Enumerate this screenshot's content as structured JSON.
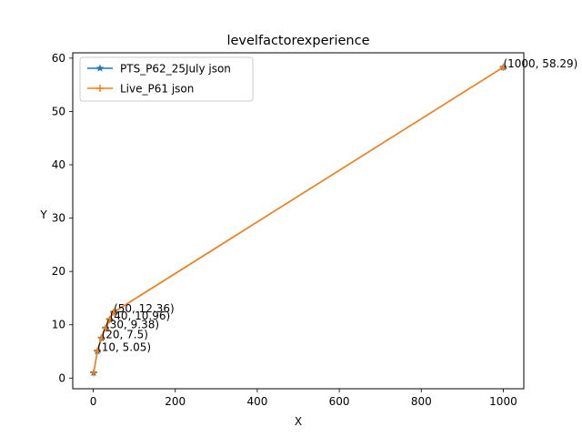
{
  "chart_data": {
    "type": "line",
    "title": "levelfactorexperience",
    "xlabel": "X",
    "ylabel": "Y",
    "xlim": [
      -50,
      1050
    ],
    "ylim": [
      -2.0,
      61.0
    ],
    "xticks": [
      0,
      200,
      400,
      600,
      800,
      1000
    ],
    "yticks": [
      0,
      10,
      20,
      30,
      40,
      50,
      60
    ],
    "xtick_labels": [
      "0",
      "200",
      "400",
      "600",
      "800",
      "1000"
    ],
    "ytick_labels": [
      "0",
      "10",
      "20",
      "30",
      "40",
      "50",
      "60"
    ],
    "grid": false,
    "legend_position": "upper-left",
    "series": [
      {
        "name": "PTS_P62_25July json",
        "color": "#1f77b4",
        "marker": "star",
        "x": [
          1,
          10,
          20,
          30,
          40,
          50,
          1000
        ],
        "y": [
          1,
          5.05,
          7.5,
          9.38,
          10.96,
          12.36,
          58.29
        ]
      },
      {
        "name": "Live_P61 json",
        "color": "#ff7f0e",
        "marker": "plus",
        "x": [
          1,
          10,
          20,
          30,
          40,
          50,
          1000
        ],
        "y": [
          1,
          5.05,
          7.5,
          9.38,
          10.96,
          12.36,
          58.29
        ]
      }
    ],
    "annotations": [
      {
        "text": "(10, 5.05)",
        "x": 10,
        "y": 5.05
      },
      {
        "text": "(20, 7.5)",
        "x": 20,
        "y": 7.5
      },
      {
        "text": "(30, 9.38)",
        "x": 30,
        "y": 9.38
      },
      {
        "text": "(40, 10.96)",
        "x": 40,
        "y": 10.96
      },
      {
        "text": "(50, 12.36)",
        "x": 50,
        "y": 12.36
      },
      {
        "text": "(1000, 58.29)",
        "x": 1000,
        "y": 58.29
      }
    ]
  }
}
